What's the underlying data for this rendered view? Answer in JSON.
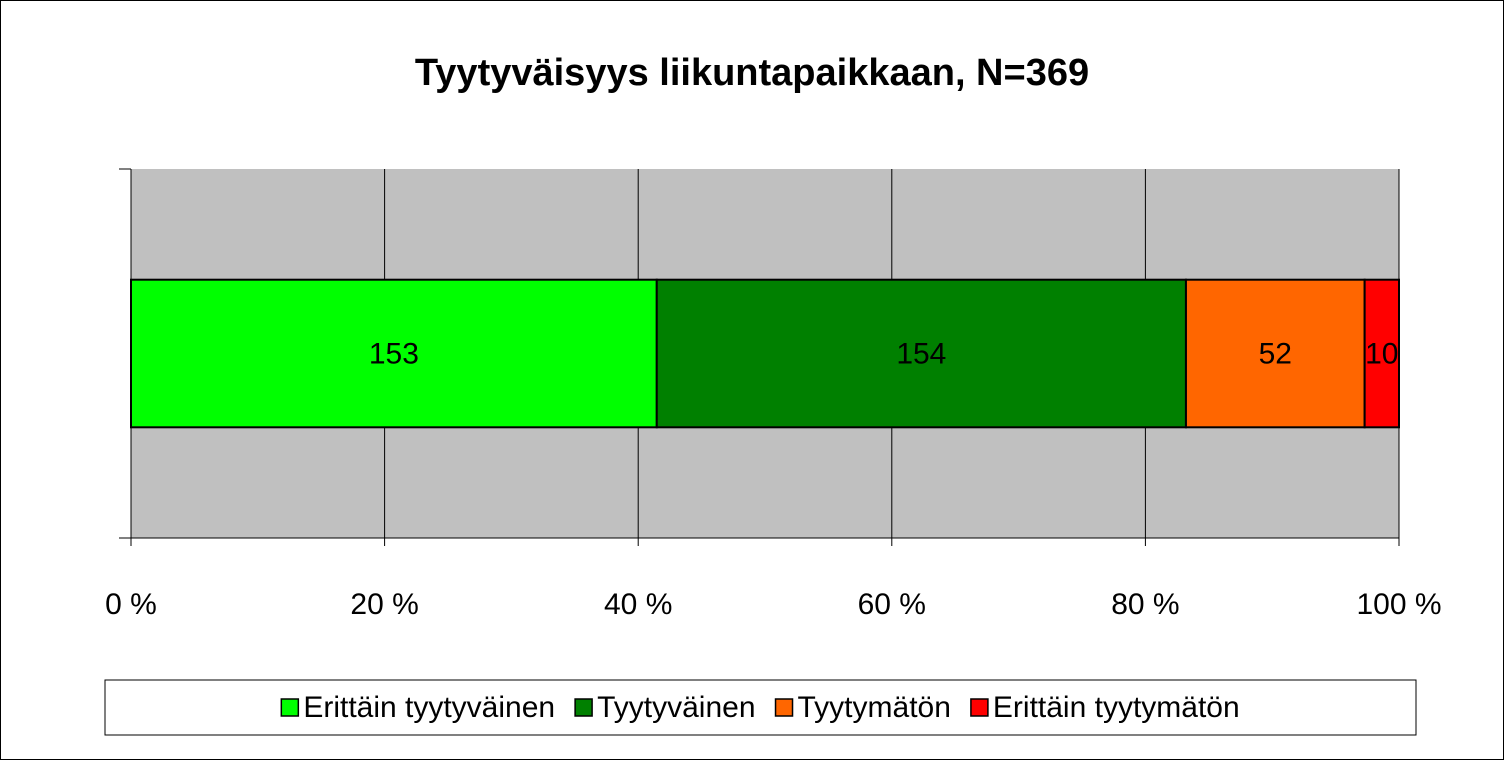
{
  "chart_data": {
    "type": "stacked100_barh",
    "title": "Tyytyväisyys liikuntapaikkaan, N=369",
    "series": [
      {
        "name": "Erittäin tyytyväinen",
        "color": "#00ff00",
        "values": [
          153
        ]
      },
      {
        "name": "Tyytyväinen",
        "color": "#008000",
        "values": [
          154
        ]
      },
      {
        "name": "Tyytymätön",
        "color": "#ff6600",
        "values": [
          52
        ]
      },
      {
        "name": "Erittäin tyytymätön",
        "color": "#ff0000",
        "values": [
          10
        ]
      }
    ],
    "xlim": [
      0,
      100
    ],
    "xticks": [
      {
        "value": 0,
        "label": "0 %"
      },
      {
        "value": 20,
        "label": "20 %"
      },
      {
        "value": 40,
        "label": "40 %"
      },
      {
        "value": 60,
        "label": "60 %"
      },
      {
        "value": 80,
        "label": "80 %"
      },
      {
        "value": 100,
        "label": "100 %"
      }
    ],
    "grid": true,
    "plot_background": "#c0c0c0",
    "legend": "bottom"
  }
}
